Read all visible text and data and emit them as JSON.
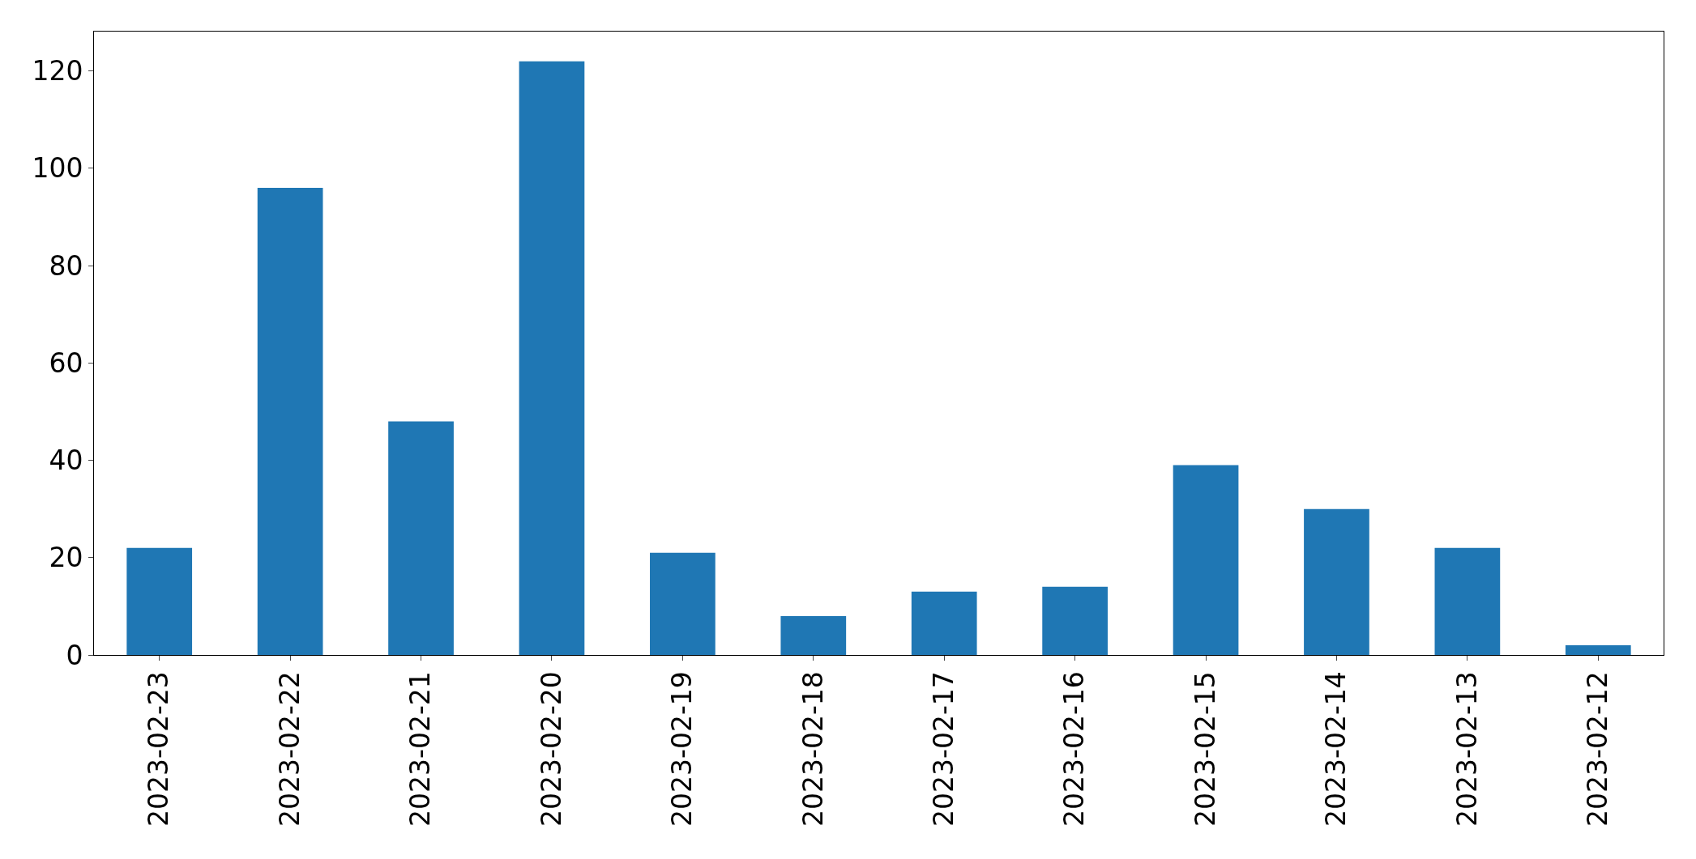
{
  "chart_data": {
    "type": "bar",
    "categories": [
      "2023-02-23",
      "2023-02-22",
      "2023-02-21",
      "2023-02-20",
      "2023-02-19",
      "2023-02-18",
      "2023-02-17",
      "2023-02-16",
      "2023-02-15",
      "2023-02-14",
      "2023-02-13",
      "2023-02-12"
    ],
    "values": [
      22,
      96,
      48,
      122,
      21,
      8,
      13,
      14,
      39,
      30,
      22,
      2
    ],
    "color": "#1f77b4",
    "ylim": [
      0,
      128.1
    ],
    "yticks": [
      0,
      20,
      40,
      60,
      80,
      100,
      120
    ],
    "legend": false
  }
}
